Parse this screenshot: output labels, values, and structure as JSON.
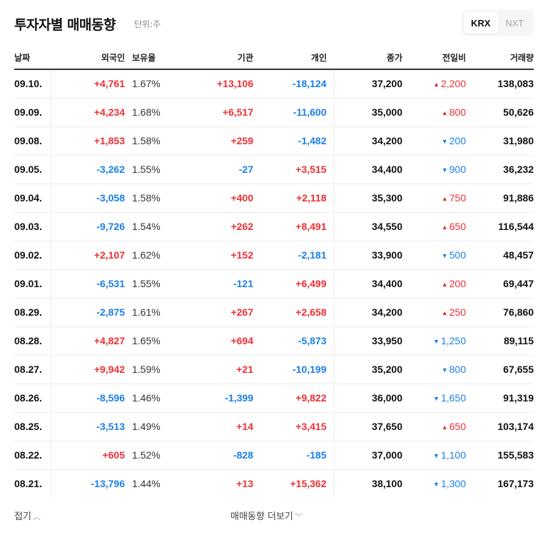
{
  "header": {
    "title": "투자자별 매매동향",
    "unit": "단위:주",
    "market_toggle": [
      {
        "label": "KRX",
        "active": true
      },
      {
        "label": "NXT",
        "active": false
      }
    ]
  },
  "colors": {
    "up": "#ee2f34",
    "down": "#1a7fe8"
  },
  "table": {
    "columns": {
      "date": "날짜",
      "foreign": "외국인",
      "holding_ratio": "보유율",
      "institution": "기관",
      "individual": "개인",
      "close": "종가",
      "change": "전일비",
      "volume": "거래량"
    },
    "rows": [
      {
        "date": "09.10.",
        "foreign": "+4,761",
        "holding_ratio": "1.67%",
        "institution": "+13,106",
        "individual": "-18,124",
        "close": "37,200",
        "change": "2,200",
        "change_dir": "up",
        "volume": "138,083"
      },
      {
        "date": "09.09.",
        "foreign": "+4,234",
        "holding_ratio": "1.68%",
        "institution": "+6,517",
        "individual": "-11,600",
        "close": "35,000",
        "change": "800",
        "change_dir": "up",
        "volume": "50,626"
      },
      {
        "date": "09.08.",
        "foreign": "+1,853",
        "holding_ratio": "1.58%",
        "institution": "+259",
        "individual": "-1,482",
        "close": "34,200",
        "change": "200",
        "change_dir": "down",
        "volume": "31,980"
      },
      {
        "date": "09.05.",
        "foreign": "-3,262",
        "holding_ratio": "1.55%",
        "institution": "-27",
        "individual": "+3,515",
        "close": "34,400",
        "change": "900",
        "change_dir": "down",
        "volume": "36,232"
      },
      {
        "date": "09.04.",
        "foreign": "-3,058",
        "holding_ratio": "1.58%",
        "institution": "+400",
        "individual": "+2,118",
        "close": "35,300",
        "change": "750",
        "change_dir": "up",
        "volume": "91,886"
      },
      {
        "date": "09.03.",
        "foreign": "-9,726",
        "holding_ratio": "1.54%",
        "institution": "+262",
        "individual": "+8,491",
        "close": "34,550",
        "change": "650",
        "change_dir": "up",
        "volume": "116,544"
      },
      {
        "date": "09.02.",
        "foreign": "+2,107",
        "holding_ratio": "1.62%",
        "institution": "+152",
        "individual": "-2,181",
        "close": "33,900",
        "change": "500",
        "change_dir": "down",
        "volume": "48,457"
      },
      {
        "date": "09.01.",
        "foreign": "-6,531",
        "holding_ratio": "1.55%",
        "institution": "-121",
        "individual": "+6,499",
        "close": "34,400",
        "change": "200",
        "change_dir": "up",
        "volume": "69,447"
      },
      {
        "date": "08.29.",
        "foreign": "-2,875",
        "holding_ratio": "1.61%",
        "institution": "+267",
        "individual": "+2,658",
        "close": "34,200",
        "change": "250",
        "change_dir": "up",
        "volume": "76,860"
      },
      {
        "date": "08.28.",
        "foreign": "+4,827",
        "holding_ratio": "1.65%",
        "institution": "+694",
        "individual": "-5,873",
        "close": "33,950",
        "change": "1,250",
        "change_dir": "down",
        "volume": "89,115"
      },
      {
        "date": "08.27.",
        "foreign": "+9,942",
        "holding_ratio": "1.59%",
        "institution": "+21",
        "individual": "-10,199",
        "close": "35,200",
        "change": "800",
        "change_dir": "down",
        "volume": "67,655"
      },
      {
        "date": "08.26.",
        "foreign": "-8,596",
        "holding_ratio": "1.46%",
        "institution": "-1,399",
        "individual": "+9,822",
        "close": "36,000",
        "change": "1,650",
        "change_dir": "down",
        "volume": "91,319"
      },
      {
        "date": "08.25.",
        "foreign": "-3,513",
        "holding_ratio": "1.49%",
        "institution": "+14",
        "individual": "+3,415",
        "close": "37,650",
        "change": "650",
        "change_dir": "up",
        "volume": "103,174"
      },
      {
        "date": "08.22.",
        "foreign": "+605",
        "holding_ratio": "1.52%",
        "institution": "-828",
        "individual": "-185",
        "close": "37,000",
        "change": "1,100",
        "change_dir": "down",
        "volume": "155,583"
      },
      {
        "date": "08.21.",
        "foreign": "-13,796",
        "holding_ratio": "1.44%",
        "institution": "+13",
        "individual": "+15,362",
        "close": "38,100",
        "change": "1,300",
        "change_dir": "down",
        "volume": "167,173"
      }
    ]
  },
  "footer": {
    "fold_label": "접기",
    "fold_icon": "chevron-up-icon",
    "more_label": "매매동향 더보기",
    "more_icon": "chevron-down-icon"
  },
  "icons": {
    "up_arrow": "▲",
    "down_arrow": "▼",
    "chevron_up": "︿",
    "chevron_down": "﹀"
  }
}
